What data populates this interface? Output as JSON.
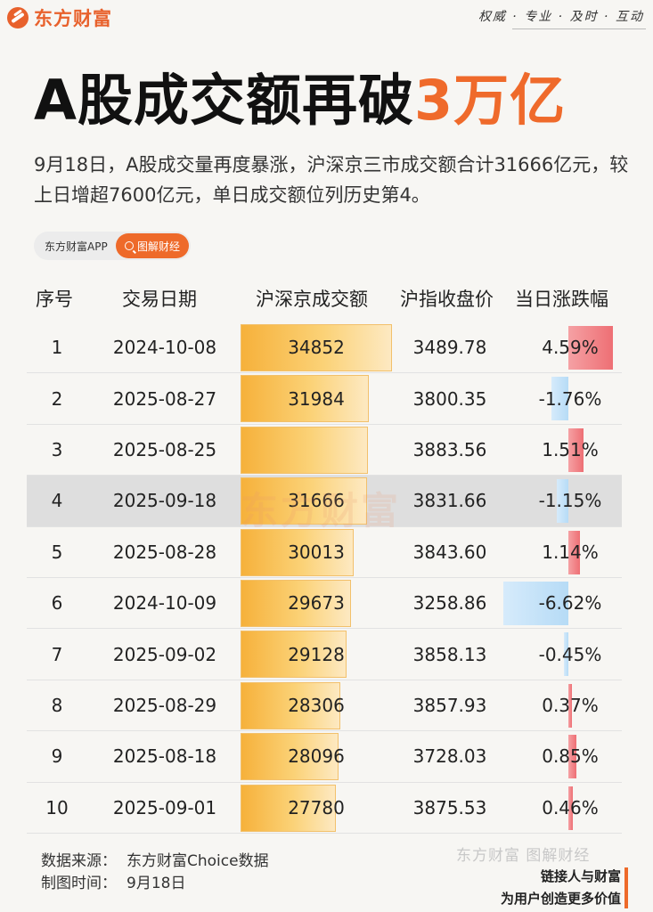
{
  "brand": {
    "logo_text": "东方财富",
    "slogan": "权威 · 专业 · 及时 · 互动"
  },
  "headline": {
    "main": "A股成交额再破",
    "accent": "3万亿"
  },
  "description": "9月18日，A股成交量再度暴涨，沪深京三市成交额合计31666亿元，较上日增超7600亿元，单日成交额位列历史第4。",
  "tags": {
    "app": "东方财富APP",
    "pill": "图解财经"
  },
  "table": {
    "headers": [
      "序号",
      "交易日期",
      "沪深京成交额",
      "沪指收盘价",
      "当日涨跌幅"
    ],
    "highlight_rank": "4",
    "rows": [
      {
        "rank": "1",
        "date": "2024-10-08",
        "volume": "34852",
        "close": "3489.78",
        "pct": "4.59%",
        "pct_value": 4.59,
        "volume_value": 34852
      },
      {
        "rank": "2",
        "date": "2025-08-27",
        "volume": "31984",
        "close": "3800.35",
        "pct": "-1.76%",
        "pct_value": -1.76,
        "volume_value": 31984
      },
      {
        "rank": "3",
        "date": "2025-08-25",
        "volume": "",
        "close": "3883.56",
        "pct": "1.51%",
        "pct_value": 1.51,
        "volume_value": 31769
      },
      {
        "rank": "4",
        "date": "2025-09-18",
        "volume": "31666",
        "close": "3831.66",
        "pct": "-1.15%",
        "pct_value": -1.15,
        "volume_value": 31666
      },
      {
        "rank": "5",
        "date": "2025-08-28",
        "volume": "30013",
        "close": "3843.60",
        "pct": "1.14%",
        "pct_value": 1.14,
        "volume_value": 30013
      },
      {
        "rank": "6",
        "date": "2024-10-09",
        "volume": "29673",
        "close": "3258.86",
        "pct": "-6.62%",
        "pct_value": -6.62,
        "volume_value": 29673
      },
      {
        "rank": "7",
        "date": "2025-09-02",
        "volume": "29128",
        "close": "3858.13",
        "pct": "-0.45%",
        "pct_value": -0.45,
        "volume_value": 29128
      },
      {
        "rank": "8",
        "date": "2025-08-29",
        "volume": "28306",
        "close": "3857.93",
        "pct": "0.37%",
        "pct_value": 0.37,
        "volume_value": 28306
      },
      {
        "rank": "9",
        "date": "2025-08-18",
        "volume": "28096",
        "close": "3728.03",
        "pct": "0.85%",
        "pct_value": 0.85,
        "volume_value": 28096
      },
      {
        "rank": "10",
        "date": "2025-09-01",
        "volume": "27780",
        "close": "3875.53",
        "pct": "0.46%",
        "pct_value": 0.46,
        "volume_value": 27780
      }
    ]
  },
  "watermark": "东方财富",
  "footer": {
    "source_label": "数据来源：",
    "source_value": "东方财富Choice数据",
    "time_label": "制图时间：",
    "time_value": "9月18日",
    "watermark": "东方财富 图解财经",
    "motto_1": "链接人与财富",
    "motto_2": "为用户创造更多价值"
  },
  "colors": {
    "accent": "#ee6a2a",
    "up": "#ee6f74",
    "down": "#b6dbf6",
    "volume_bar": "#f6b13b"
  }
}
